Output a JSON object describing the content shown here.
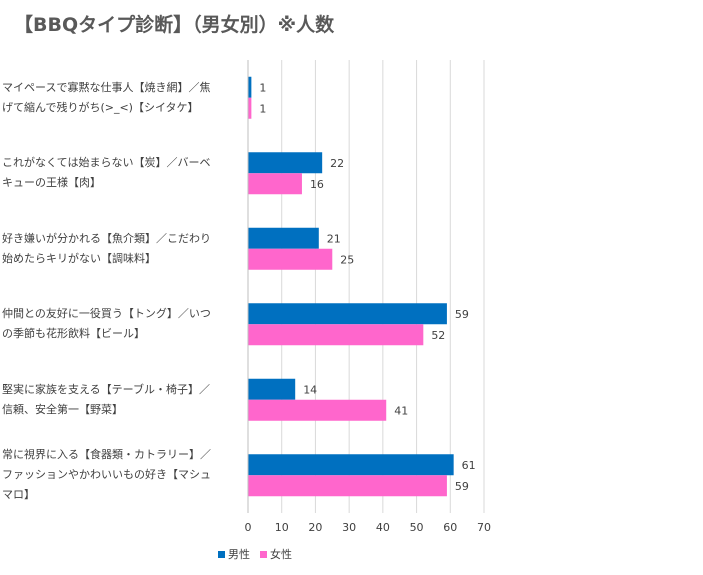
{
  "title": "【BBQタイプ診断】（男女別）※人数",
  "chart_data": {
    "type": "bar",
    "orientation": "horizontal",
    "title": "【BBQタイプ診断】（男女別）※人数",
    "categories": [
      "マイペースで寡黙な仕事人【焼き網】／焦げて縮んで残りがち(>_<)【シイタケ】",
      "これがなくては始まらない【炭】／バーベキューの王様【肉】",
      "好き嫌いが分かれる【魚介類】／こだわり始めたらキリがない【調味料】",
      "仲間との友好に一役買う【トング】／いつの季節も花形飲料【ビール】",
      "堅実に家族を支える【テーブル・椅子】／信頼、安全第一【野菜】",
      "常に視界に入る【食器類・カトラリー】／ファッションやかわいいもの好き【マシュマロ】"
    ],
    "category_lines": [
      [
        "マイペースで寡黙な仕事人【焼き網】／焦",
        "げて縮んで残りがち(>_<)【シイタケ】"
      ],
      [
        "これがなくては始まらない【炭】／バーベ",
        "キューの王様【肉】"
      ],
      [
        "好き嫌いが分かれる【魚介類】／こだわり",
        "始めたらキリがない【調味料】"
      ],
      [
        "仲間との友好に一役買う【トング】／いつ",
        "の季節も花形飲料【ビール】"
      ],
      [
        "堅実に家族を支える【テーブル・椅子】／",
        "信頼、安全第一【野菜】"
      ],
      [
        "常に視界に入る【食器類・カトラリー】／",
        "ファッションやかわいいもの好き【マシュ",
        "マロ】"
      ]
    ],
    "series": [
      {
        "name": "男性",
        "color": "#0070C0",
        "values": [
          1,
          22,
          21,
          59,
          14,
          61
        ]
      },
      {
        "name": "女性",
        "color": "#FF66CC",
        "values": [
          1,
          16,
          25,
          52,
          41,
          59
        ]
      }
    ],
    "xlim": [
      0,
      70
    ],
    "xticks": [
      0,
      10,
      20,
      30,
      40,
      50,
      60,
      70
    ],
    "grid": true,
    "legend_position": "bottom-left"
  }
}
